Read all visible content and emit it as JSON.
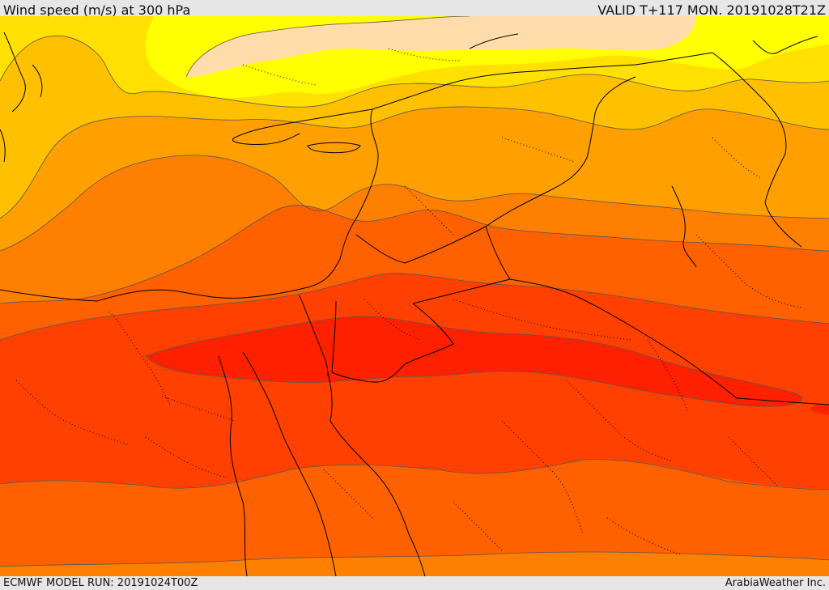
{
  "header": {
    "title": "Wind speed (m/s) at 300 hPa",
    "valid_time": "VALID T+117 MON. 20191028T21Z"
  },
  "footer": {
    "model_run": "ECMWF MODEL RUN: 20191024T00Z",
    "credit": "ArabiaWeather Inc."
  },
  "map": {
    "variable": "wind speed",
    "units": "m/s",
    "level_hpa": 300,
    "colors": {
      "band_1": "#ffdcaa",
      "band_2": "#ffff00",
      "band_3": "#ffe000",
      "band_4": "#ffc000",
      "band_5": "#ff9f00",
      "band_6": "#ff8000",
      "band_7": "#ff6000",
      "band_8": "#ff4000",
      "band_9": "#ff2000",
      "contour": "#555555",
      "border": "#000000"
    }
  }
}
